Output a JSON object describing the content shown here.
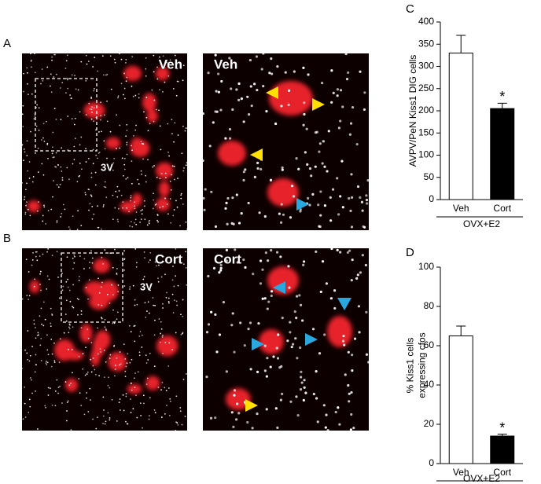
{
  "images": [
    {
      "label": "A",
      "left_title": "Veh",
      "right_title": "Veh",
      "marker": "3V"
    },
    {
      "label": "B",
      "left_title": "Cort",
      "right_title": "Cort",
      "marker": "3V"
    }
  ],
  "chart_data": [
    {
      "type": "bar",
      "panel": "C",
      "ylabel": [
        "AVPV/PeN Kiss1 DIG cells"
      ],
      "categories": [
        "Veh",
        "Cort"
      ],
      "values": [
        330,
        205
      ],
      "errors": [
        40,
        12
      ],
      "colors": [
        "#ffffff",
        "#000000"
      ],
      "annotations": [
        "",
        "*"
      ],
      "group_label": "OVX+E2",
      "ylim": [
        0,
        400
      ],
      "yticks": [
        0,
        50,
        100,
        150,
        200,
        250,
        300,
        350,
        400
      ]
    },
    {
      "type": "bar",
      "panel": "D",
      "ylabel": [
        "% Kiss1 cells",
        "expressing cfos"
      ],
      "categories": [
        "Veh",
        "Cort"
      ],
      "values": [
        65,
        14
      ],
      "errors": [
        5,
        1
      ],
      "colors": [
        "#ffffff",
        "#000000"
      ],
      "annotations": [
        "",
        "*"
      ],
      "group_label": "OVX+E2",
      "ylim": [
        0,
        100
      ],
      "yticks": [
        0,
        20,
        40,
        60,
        80,
        100
      ]
    }
  ]
}
